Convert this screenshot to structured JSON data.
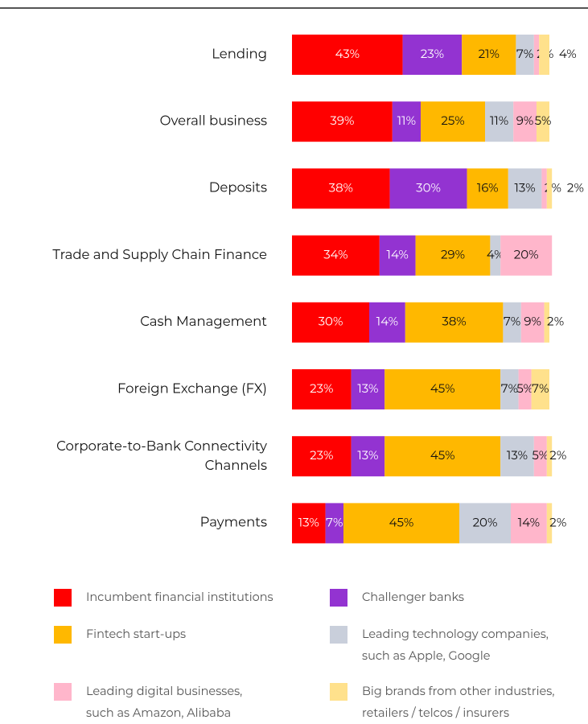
{
  "chart_data": {
    "type": "stacked-bar-horizontal",
    "categories": [
      "Lending",
      "Overall business",
      "Deposits",
      "Trade and Supply Chain Finance",
      "Cash Management",
      "Foreign Exchange (FX)",
      "Corporate-to-Bank Connectivity Channels",
      "Payments"
    ],
    "xlim": [
      0,
      100
    ],
    "series": [
      {
        "name": "Incumbent financial institutions",
        "color": "#ff0000",
        "values": [
          43,
          39,
          38,
          34,
          30,
          23,
          23,
          13
        ],
        "value_labels": [
          "43%",
          "39%",
          "38%",
          "34%",
          "30%",
          "23%",
          "23%",
          "13%"
        ]
      },
      {
        "name": "Challenger banks",
        "color": "#9333d1",
        "values": [
          23,
          11,
          30,
          14,
          14,
          13,
          13,
          7
        ],
        "value_labels": [
          "23%",
          "11%",
          "30%",
          "14%",
          "14%",
          "13%",
          "13%",
          "7%"
        ]
      },
      {
        "name": "Fintech start-ups",
        "color": "#ffb800",
        "values": [
          21,
          25,
          16,
          29,
          38,
          45,
          45,
          45
        ],
        "value_labels": [
          "21%",
          "25%",
          "16%",
          "29%",
          "38%",
          "45%",
          "45%",
          "45%"
        ]
      },
      {
        "name": "Leading technology companies, such as Apple, Google",
        "color": "#c9cfdb",
        "values": [
          7,
          11,
          13,
          4,
          7,
          7,
          13,
          20
        ],
        "value_labels": [
          "7%",
          "11%",
          "13%",
          "4%",
          "7%",
          "7%",
          "13%",
          "20%"
        ]
      },
      {
        "name": "Leading digital businesses, such as Amazon, Alibaba",
        "color": "#ffb6cb",
        "values": [
          2,
          9,
          2,
          20,
          9,
          5,
          5,
          14
        ],
        "value_labels": [
          "2%",
          "9%",
          "2%",
          "20%",
          "9%",
          "5%",
          "5%",
          "14%"
        ]
      },
      {
        "name": "Big brands from other industries, retailers / telcos / insurers",
        "color": "#ffe18c",
        "values": [
          4,
          5,
          2,
          null,
          2,
          7,
          2,
          2
        ],
        "value_labels": [
          "4%",
          "5%",
          "2%",
          null,
          "2%",
          "7%",
          "2%",
          "2%"
        ]
      }
    ]
  }
}
